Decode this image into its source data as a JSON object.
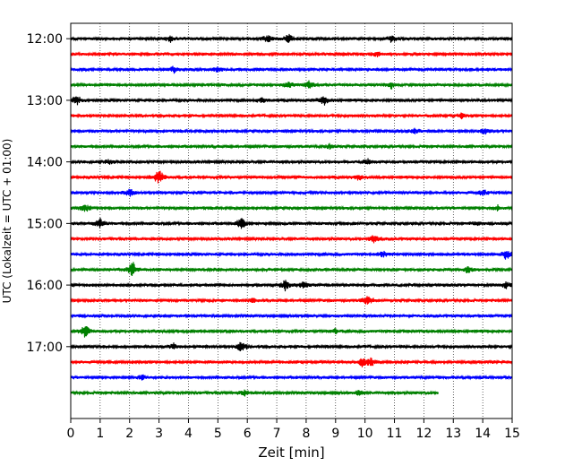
{
  "chart_data": {
    "type": "line",
    "title": "",
    "xlabel": "Zeit  [min]",
    "ylabel": "UTC (Lokalzeit = UTC + 01:00)",
    "xlim": [
      0,
      15
    ],
    "x_ticks": [
      "0",
      "1",
      "2",
      "3",
      "4",
      "5",
      "6",
      "7",
      "8",
      "9",
      "10",
      "11",
      "12",
      "13",
      "14",
      "15"
    ],
    "y_ticks": [
      "12:00",
      "13:00",
      "14:00",
      "15:00",
      "16:00",
      "17:00"
    ],
    "ylim": [
      "11:45",
      "18:10"
    ],
    "grid": "vertical dotted lines at each minute",
    "trace_interval": "15 min",
    "colors_cycle": [
      "#000000",
      "#ff0000",
      "#0000ff",
      "#008000"
    ],
    "series": [
      {
        "start": "12:00",
        "end_min": 15,
        "color": "#000000",
        "events": [
          {
            "t": 6.7,
            "amp": 5
          },
          {
            "t": 7.4,
            "amp": 6
          },
          {
            "t": 3.4,
            "amp": 4
          },
          {
            "t": 10.9,
            "amp": 4
          }
        ]
      },
      {
        "start": "12:15",
        "end_min": 15,
        "color": "#ff0000",
        "events": [
          {
            "t": 10.4,
            "amp": 3
          }
        ]
      },
      {
        "start": "12:30",
        "end_min": 15,
        "color": "#0000ff",
        "events": [
          {
            "t": 3.5,
            "amp": 4
          },
          {
            "t": 5.0,
            "amp": 3
          }
        ]
      },
      {
        "start": "12:45",
        "end_min": 15,
        "color": "#008000",
        "events": [
          {
            "t": 8.1,
            "amp": 5
          },
          {
            "t": 7.4,
            "amp": 4
          },
          {
            "t": 10.9,
            "amp": 4
          }
        ]
      },
      {
        "start": "13:00",
        "end_min": 15,
        "color": "#000000",
        "events": [
          {
            "t": 0.2,
            "amp": 6
          },
          {
            "t": 8.6,
            "amp": 7
          },
          {
            "t": 6.5,
            "amp": 3
          }
        ]
      },
      {
        "start": "13:15",
        "end_min": 15,
        "color": "#ff0000",
        "events": [
          {
            "t": 13.3,
            "amp": 3
          }
        ]
      },
      {
        "start": "13:30",
        "end_min": 15,
        "color": "#0000ff",
        "events": [
          {
            "t": 14.1,
            "amp": 4
          },
          {
            "t": 11.7,
            "amp": 3
          }
        ]
      },
      {
        "start": "13:45",
        "end_min": 15,
        "color": "#008000",
        "events": [
          {
            "t": 8.8,
            "amp": 3
          }
        ]
      },
      {
        "start": "14:00",
        "end_min": 15,
        "color": "#000000",
        "events": [
          {
            "t": 1.3,
            "amp": 3
          },
          {
            "t": 10.1,
            "amp": 3
          }
        ]
      },
      {
        "start": "14:15",
        "end_min": 15,
        "color": "#ff0000",
        "events": [
          {
            "t": 3.0,
            "amp": 10
          },
          {
            "t": 9.8,
            "amp": 3
          }
        ]
      },
      {
        "start": "14:30",
        "end_min": 15,
        "color": "#0000ff",
        "events": [
          {
            "t": 2.0,
            "amp": 5
          },
          {
            "t": 14.0,
            "amp": 4
          }
        ]
      },
      {
        "start": "14:45",
        "end_min": 15,
        "color": "#008000",
        "events": [
          {
            "t": 0.5,
            "amp": 5
          },
          {
            "t": 14.5,
            "amp": 3
          }
        ]
      },
      {
        "start": "15:00",
        "end_min": 15,
        "color": "#000000",
        "events": [
          {
            "t": 1.0,
            "amp": 7
          },
          {
            "t": 5.8,
            "amp": 8
          },
          {
            "t": 13.8,
            "amp": 3
          }
        ]
      },
      {
        "start": "15:15",
        "end_min": 15,
        "color": "#ff0000",
        "events": [
          {
            "t": 10.3,
            "amp": 5
          }
        ]
      },
      {
        "start": "15:30",
        "end_min": 15,
        "color": "#0000ff",
        "events": [
          {
            "t": 14.8,
            "amp": 7
          },
          {
            "t": 10.6,
            "amp": 4
          }
        ]
      },
      {
        "start": "15:45",
        "end_min": 15,
        "color": "#008000",
        "events": [
          {
            "t": 2.1,
            "amp": 10
          },
          {
            "t": 13.5,
            "amp": 5
          }
        ]
      },
      {
        "start": "16:00",
        "end_min": 15,
        "color": "#000000",
        "events": [
          {
            "t": 7.3,
            "amp": 7
          },
          {
            "t": 7.9,
            "amp": 5
          },
          {
            "t": 14.8,
            "amp": 4
          }
        ]
      },
      {
        "start": "16:15",
        "end_min": 15,
        "color": "#ff0000",
        "events": [
          {
            "t": 10.1,
            "amp": 7
          },
          {
            "t": 6.2,
            "amp": 3
          }
        ]
      },
      {
        "start": "16:30",
        "end_min": 15,
        "color": "#0000ff",
        "events": []
      },
      {
        "start": "16:45",
        "end_min": 15,
        "color": "#008000",
        "events": [
          {
            "t": 0.5,
            "amp": 8
          },
          {
            "t": 9.0,
            "amp": 3
          }
        ]
      },
      {
        "start": "17:00",
        "end_min": 15,
        "color": "#000000",
        "events": [
          {
            "t": 5.8,
            "amp": 7
          },
          {
            "t": 3.5,
            "amp": 3
          }
        ]
      },
      {
        "start": "17:15",
        "end_min": 15,
        "color": "#ff0000",
        "events": [
          {
            "t": 9.9,
            "amp": 6
          },
          {
            "t": 10.2,
            "amp": 5
          }
        ]
      },
      {
        "start": "17:30",
        "end_min": 15,
        "color": "#0000ff",
        "events": [
          {
            "t": 2.4,
            "amp": 3
          }
        ]
      },
      {
        "start": "17:45",
        "end_min": 12.5,
        "color": "#008000",
        "events": [
          {
            "t": 5.9,
            "amp": 3
          },
          {
            "t": 9.8,
            "amp": 3
          }
        ]
      }
    ]
  }
}
